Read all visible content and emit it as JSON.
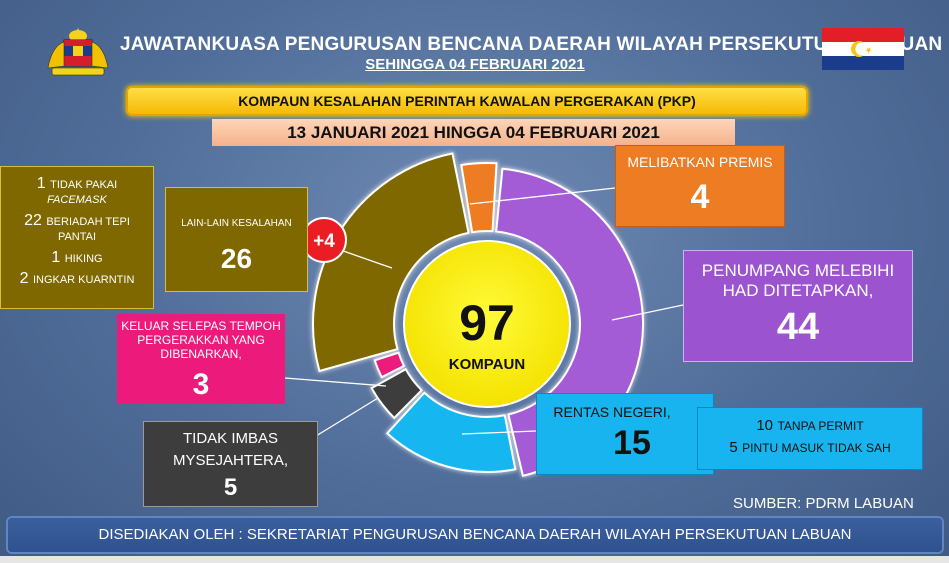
{
  "header": {
    "title": "JAWATANKUASA PENGURUSAN BENCANA DAERAH WILAYAH PERSEKUTUAN  LABUAN",
    "subtitle": "SEHINGGA 04 FEBRUARI 2021"
  },
  "banner": {
    "main": "KOMPAUN KESALAHAN PERINTAH KAWALAN PERGERAKAN (PKP)",
    "period": "13 JANUARI 2021 HINGGA 04 FEBRUARI 2021"
  },
  "center": {
    "total": "97",
    "label": "KOMPAUN"
  },
  "callouts": {
    "premis": {
      "label": "MELIBATKAN PREMIS",
      "value": "4"
    },
    "penumpang": {
      "label_line1": "PENUMPANG MELEBIHI",
      "label_line2": "HAD DITETAPKAN,",
      "value": "44"
    },
    "rentas": {
      "label": "RENTAS NEGERI,",
      "value": "15",
      "detail": [
        {
          "num": "10",
          "text": "TANPA PERMIT"
        },
        {
          "num": "5",
          "text": "PINTU MASUK TIDAK SAH"
        }
      ]
    },
    "imbas": {
      "label_line1": "TIDAK IMBAS",
      "label_line2": "MYSEJAHTERA,",
      "value": "5"
    },
    "keluar": {
      "label_line1": "KELUAR SELEPAS TEMPOH",
      "label_line2": "PERGERAKKAN YANG",
      "label_line3": "DIBENARKAN,",
      "value": "3"
    },
    "lain": {
      "label": "LAIN-LAIN KESALAHAN",
      "value": "26",
      "increase": "+4",
      "detail": [
        {
          "num": "1",
          "text": "TIDAK PAKAI",
          "text2": "FACEMASK"
        },
        {
          "num": "22",
          "text": "BERIADAH TEPI",
          "text2": "PANTAI"
        },
        {
          "num": "1",
          "text": "HIKING"
        },
        {
          "num": "2",
          "text": "INGKAR KUARNTIN"
        }
      ]
    }
  },
  "source": "SUMBER: PDRM LABUAN",
  "footer": "DISEDIAKAN OLEH : SEKRETARIAT PENGURUSAN BENCANA DAERAH WILAYAH PERSEKUTUAN LABUAN",
  "chart_data": {
    "type": "pie",
    "title": "KOMPAUN KESALAHAN PERINTAH KAWALAN PERGERAKAN (PKP)",
    "total": 97,
    "categories": [
      "MELIBATKAN PREMIS",
      "PENUMPANG MELEBIHI HAD DITETAPKAN",
      "RENTAS NEGERI",
      "TIDAK IMBAS MYSEJAHTERA",
      "KELUAR SELEPAS TEMPOH PERGERAKKAN YANG DIBENARKAN",
      "LAIN-LAIN KESALAHAN"
    ],
    "values": [
      4,
      44,
      15,
      5,
      3,
      26
    ],
    "colors": [
      "#ee7c22",
      "#a45cd6",
      "#19b6f0",
      "#3d3d3d",
      "#ec1a7b",
      "#7f6800"
    ]
  }
}
